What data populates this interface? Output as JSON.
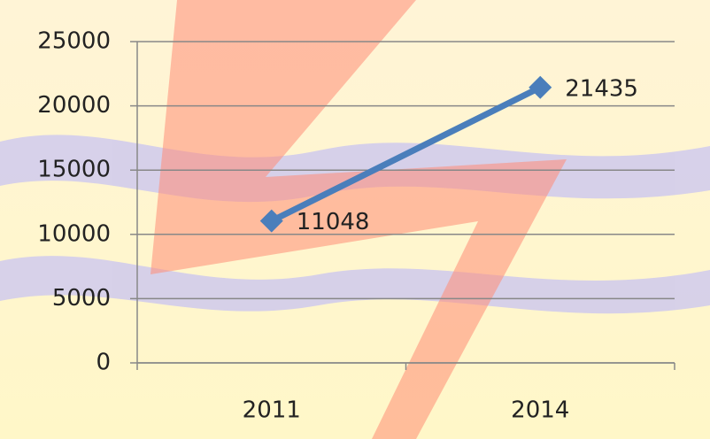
{
  "chart_data": {
    "type": "line",
    "categories": [
      "2011",
      "2014"
    ],
    "series": [
      {
        "color": "#4a7ebb",
        "values": [
          11048,
          21435
        ]
      }
    ],
    "ylim": [
      0,
      25000
    ],
    "yticks": [
      0,
      5000,
      10000,
      15000,
      20000,
      25000
    ],
    "grid": true
  }
}
